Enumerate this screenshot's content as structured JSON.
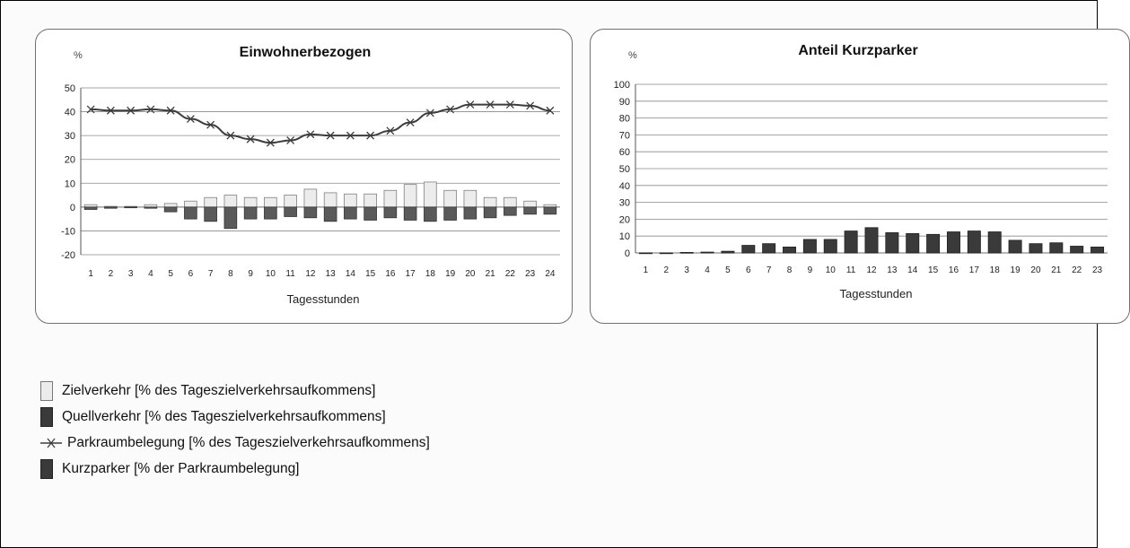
{
  "legend": {
    "items": [
      {
        "key": "ziel",
        "label": "Zielverkehr [% des Tageszielverkehrsaufkommens]"
      },
      {
        "key": "quell",
        "label": "Quellverkehr [% des Tageszielverkehrsaufkommens]"
      },
      {
        "key": "park",
        "label": "Parkraumbelegung [% des Tageszielverkehrsaufkommens]"
      },
      {
        "key": "kurz",
        "label": "Kurzparker [% der Parkraumbelegung]"
      }
    ]
  },
  "colors": {
    "ziel_fill": "#ececec",
    "quell_fill": "#5a5a5a",
    "kurz_fill": "#3a3a3a",
    "line": "#3c3c3c",
    "grid": "#8a8a8a"
  },
  "chart_data": [
    {
      "type": "bar",
      "title": "Einwohnerbezogen",
      "unit_label": "%",
      "xlabel": "Tagesstunden",
      "ylabel": "",
      "ylim": [
        -20,
        50
      ],
      "yticks": [
        -20,
        -10,
        0,
        10,
        20,
        30,
        40,
        50
      ],
      "grid": true,
      "categories": [
        "1",
        "2",
        "3",
        "4",
        "5",
        "6",
        "7",
        "8",
        "9",
        "10",
        "11",
        "12",
        "13",
        "14",
        "15",
        "16",
        "17",
        "18",
        "19",
        "20",
        "21",
        "22",
        "23",
        "24"
      ],
      "series": [
        {
          "name": "Zielverkehr",
          "type": "bar",
          "values": [
            1,
            0.3,
            0.3,
            1,
            1.5,
            2.5,
            4,
            5,
            4,
            4,
            5,
            7.5,
            6,
            5.5,
            5.5,
            7,
            9.5,
            10.5,
            7,
            7,
            4,
            4,
            2.5,
            1
          ]
        },
        {
          "name": "Quellverkehr",
          "type": "bar",
          "values": [
            -1,
            -0.5,
            -0.3,
            -0.5,
            -2,
            -5,
            -6,
            -9,
            -5,
            -5,
            -4,
            -4.5,
            -6,
            -5,
            -5.5,
            -4.5,
            -5.5,
            -6,
            -5.5,
            -5,
            -4.5,
            -3.5,
            -3,
            -3
          ]
        },
        {
          "name": "Parkraumbelegung",
          "type": "line",
          "values": [
            41,
            40.5,
            40.5,
            41,
            40.5,
            37,
            34.5,
            30,
            28.5,
            27,
            28,
            30.5,
            30,
            30,
            30,
            32,
            35.5,
            39.5,
            41,
            43,
            43,
            43,
            42.5,
            40.5
          ]
        }
      ]
    },
    {
      "type": "bar",
      "title": "Anteil Kurzparker",
      "unit_label": "%",
      "xlabel": "Tagesstunden",
      "ylabel": "",
      "ylim": [
        0,
        100
      ],
      "yticks": [
        0,
        10,
        20,
        30,
        40,
        50,
        60,
        70,
        80,
        90,
        100
      ],
      "grid": true,
      "categories": [
        "1",
        "2",
        "3",
        "4",
        "5",
        "6",
        "7",
        "8",
        "9",
        "10",
        "11",
        "12",
        "13",
        "14",
        "15",
        "16",
        "17",
        "18",
        "19",
        "20",
        "21",
        "22",
        "23"
      ],
      "series": [
        {
          "name": "Kurzparker",
          "type": "bar",
          "values": [
            0,
            0,
            0.3,
            0.5,
            1,
            4.5,
            5.5,
            3.5,
            8,
            8,
            13,
            15,
            12,
            11.5,
            11,
            12.5,
            13,
            12.5,
            7.5,
            5.5,
            6,
            4,
            3.5
          ]
        }
      ]
    }
  ]
}
